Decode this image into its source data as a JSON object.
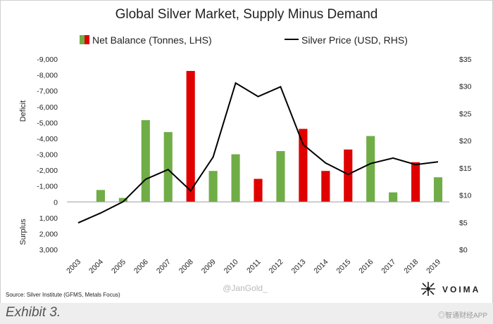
{
  "chart_data": {
    "type": "bar",
    "title": "Global Silver Market, Supply Minus Demand",
    "legend": {
      "bar_label": "Net Balance (Tonnes, LHS)",
      "line_label": "Silver Price (USD, RHS)",
      "position": "top"
    },
    "categories": [
      "2003",
      "2004",
      "2005",
      "2006",
      "2007",
      "2008",
      "2009",
      "2010",
      "2011",
      "2012",
      "2013",
      "2014",
      "2015",
      "2016",
      "2017",
      "2018",
      "2019"
    ],
    "series": [
      {
        "name": "Net Balance (Tonnes, LHS)",
        "axis": "left",
        "values": [
          0,
          -750,
          -250,
          -5150,
          -4400,
          -8250,
          -1950,
          -3000,
          -1450,
          -3200,
          -4600,
          -1950,
          -3300,
          -4150,
          -600,
          -2500,
          -1550
        ],
        "colors": [
          "#70ad47",
          "#70ad47",
          "#70ad47",
          "#70ad47",
          "#70ad47",
          "#e00000",
          "#70ad47",
          "#70ad47",
          "#e00000",
          "#70ad47",
          "#e00000",
          "#e00000",
          "#e00000",
          "#70ad47",
          "#70ad47",
          "#e00000",
          "#70ad47"
        ]
      },
      {
        "name": "Silver Price (USD, RHS)",
        "axis": "right",
        "type": "line",
        "values": [
          4.9,
          6.7,
          8.8,
          12.9,
          14.7,
          10.8,
          17.0,
          30.6,
          28.1,
          29.9,
          19.3,
          15.9,
          13.8,
          15.8,
          16.8,
          15.6,
          16.1
        ]
      }
    ],
    "left_axis": {
      "range": [
        3000,
        -9000
      ],
      "reversed": true,
      "tick_labels": [
        "-9,000",
        "-8,000",
        "-7,000",
        "-6,000",
        "-5,000",
        "-4,000",
        "-3,000",
        "-2,000",
        "-1,000",
        "0",
        "1,000",
        "2,000",
        "3,000"
      ],
      "label_top": "Deficit",
      "label_bottom": "Surplus"
    },
    "right_axis": {
      "range": [
        0,
        35
      ],
      "tick_labels": [
        "$35",
        "$30",
        "$25",
        "$20",
        "$15",
        "$10",
        "$5",
        "$0"
      ]
    },
    "source": "Source: Silver Institute (GFMS, Metals Focus)",
    "watermark": "@JanGold_",
    "brand": "VOIMA",
    "colors": {
      "green": "#70ad47",
      "red": "#e00000",
      "line": "#000000"
    }
  },
  "footer": {
    "exhibit": "Exhibit 3.",
    "app_watermark": "◎智通财经APP"
  }
}
